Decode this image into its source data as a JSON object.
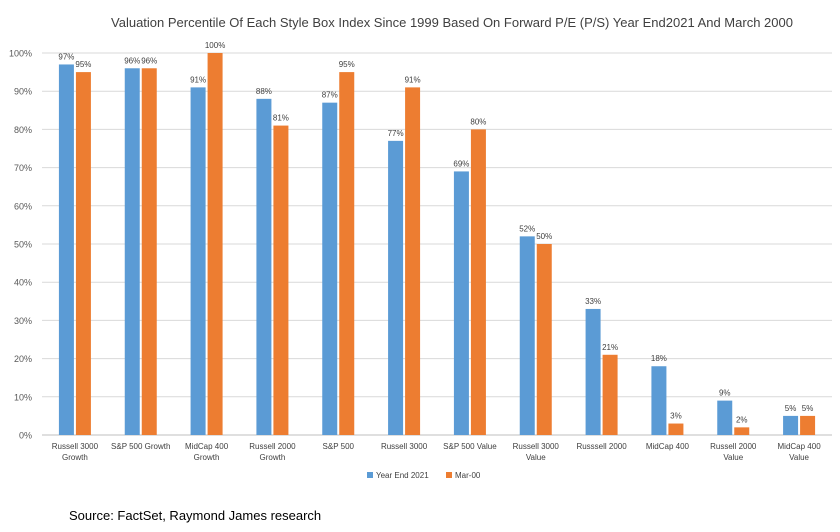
{
  "chart_data": {
    "type": "bar",
    "title": "Valuation Percentile Of Each Style Box Index Since 1999 Based On Forward P/E (P/S) Year End2021 And March 2000",
    "xlabel": "",
    "ylabel": "",
    "ylim": [
      0,
      100
    ],
    "y_ticks": [
      "0%",
      "10%",
      "20%",
      "30%",
      "40%",
      "50%",
      "60%",
      "70%",
      "80%",
      "90%",
      "100%"
    ],
    "categories": [
      [
        "Russell 3000",
        "Growth"
      ],
      [
        "S&P 500 Growth"
      ],
      [
        "MidCap 400",
        "Growth"
      ],
      [
        "Russell 2000",
        "Growth"
      ],
      [
        "S&P 500"
      ],
      [
        "Russell 3000"
      ],
      [
        "S&P 500 Value"
      ],
      [
        "Russell 3000",
        "Value"
      ],
      [
        "Russsell 2000"
      ],
      [
        "MidCap 400"
      ],
      [
        "Russell 2000",
        "Value"
      ],
      [
        "MidCap 400",
        "Value"
      ]
    ],
    "series": [
      {
        "name": "Year End 2021",
        "color": "#5b9bd5",
        "values": [
          97,
          96,
          91,
          88,
          87,
          77,
          69,
          52,
          33,
          18,
          9,
          5
        ],
        "labels": [
          "97%",
          "96%",
          "91%",
          "88%",
          "87%",
          "77%",
          "69%",
          "52%",
          "33%",
          "18%",
          "9%",
          "5%"
        ]
      },
      {
        "name": "Mar-00",
        "color": "#ed7d31",
        "values": [
          95,
          96,
          100,
          81,
          95,
          91,
          80,
          50,
          21,
          3,
          2,
          5
        ],
        "labels": [
          "95%",
          "96%",
          "100%",
          "81%",
          "95%",
          "91%",
          "80%",
          "50%",
          "21%",
          "3%",
          "2%",
          "5%"
        ]
      }
    ],
    "grid": true,
    "legend_position": "bottom"
  },
  "source": "Source: FactSet, Raymond James research"
}
